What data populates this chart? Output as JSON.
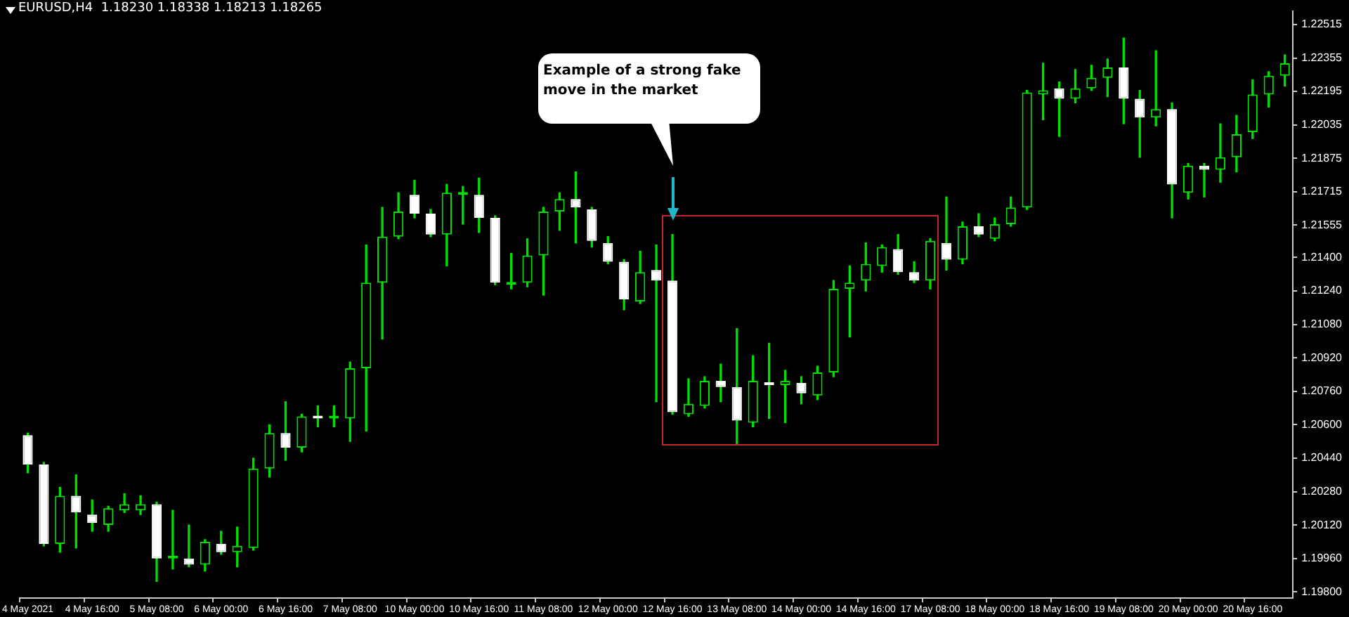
{
  "chart_data": {
    "type": "candlestick",
    "title": "EURUSD,H4  1.18230 1.18338 1.18213 1.18265",
    "color": "#00e000",
    "colors": [
      "#ffffff",
      "#ffffff",
      "#00e000",
      "#ffffff",
      "#ffffff",
      "#00e000",
      "#00e000",
      "#00e000",
      "#ffffff",
      "#00e000",
      "#ffffff",
      "#00e000",
      "#ffffff",
      "#00e000",
      "#00e000",
      "#00e000",
      "#ffffff",
      "#00e000",
      "#ffffff",
      "#00e000",
      "#00e000",
      "#00e000",
      "#00e000",
      "#00e000",
      "#ffffff",
      "#ffffff",
      "#00e000",
      "#00e000",
      "#ffffff",
      "#ffffff",
      "#00e000",
      "#00e000",
      "#00e000",
      "#00e000",
      "#ffffff",
      "#ffffff",
      "#ffffff",
      "#ffffff",
      "#00e000",
      "#ffffff",
      "#ffffff",
      "#00e000",
      "#00e000",
      "#ffffff",
      "#ffffff",
      "#00e000",
      "#ffffff",
      "#00e000",
      "#ffffff",
      "#00e000",
      "#00e000",
      "#00e000",
      "#00e000",
      "#00e000",
      "#ffffff",
      "#ffffff",
      "#00e000",
      "#ffffff",
      "#00e000",
      "#ffffff",
      "#00e000",
      "#00e000",
      "#00e000",
      "#00e000",
      "#ffffff",
      "#00e000",
      "#00e000",
      "#00e000",
      "#ffffff",
      "#ffffff",
      "#00e000",
      "#ffffff",
      "#00e000",
      "#ffffff",
      "#00e000",
      "#00e000",
      "#00e000",
      "#00e000",
      "#00e000"
    ],
    "categories": [
      "4 May 2021",
      null,
      null,
      null,
      "4 May 16:00",
      null,
      null,
      null,
      "5 May 08:00",
      null,
      null,
      null,
      "6 May 00:00",
      null,
      null,
      null,
      "6 May 16:00",
      null,
      null,
      null,
      "7 May 08:00",
      null,
      null,
      null,
      "10 May 00:00",
      null,
      null,
      null,
      "10 May 16:00",
      null,
      null,
      null,
      "11 May 08:00",
      null,
      null,
      null,
      "12 May 00:00",
      null,
      null,
      null,
      "12 May 16:00",
      null,
      null,
      null,
      "13 May 08:00",
      null,
      null,
      null,
      "14 May 00:00",
      null,
      null,
      null,
      "14 May 16:00",
      null,
      null,
      null,
      "17 May 08:00",
      null,
      null,
      null,
      "18 May 00:00",
      null,
      null,
      null,
      "18 May 16:00",
      null,
      null,
      null,
      "19 May 08:00",
      null,
      null,
      null,
      "20 May 00:00",
      null,
      null,
      null,
      "20 May 16:00",
      null,
      null
    ],
    "ohlc": [
      [
        1.2055,
        1.2056,
        1.2037,
        1.2041
      ],
      [
        1.2041,
        1.2042,
        1.2002,
        1.2003
      ],
      [
        1.2003,
        1.203,
        1.1999,
        1.2026
      ],
      [
        1.2026,
        1.2036,
        1.2001,
        1.2018
      ],
      [
        1.2017,
        1.2024,
        1.2009,
        1.2013
      ],
      [
        1.2012,
        1.2021,
        1.2009,
        1.202
      ],
      [
        1.2019,
        1.2027,
        1.2018,
        1.2022
      ],
      [
        1.2019,
        1.2026,
        1.2017,
        1.2022
      ],
      [
        1.2022,
        1.2023,
        1.1985,
        1.1996
      ],
      [
        1.1996,
        1.2019,
        1.1991,
        1.1997
      ],
      [
        1.1996,
        1.2012,
        1.1992,
        1.1993
      ],
      [
        1.1993,
        1.2005,
        1.199,
        1.2004
      ],
      [
        1.2003,
        1.2009,
        1.1998,
        1.1999
      ],
      [
        1.1999,
        1.2011,
        1.1992,
        1.2002
      ],
      [
        1.2001,
        1.2044,
        1.2,
        1.2039
      ],
      [
        1.2039,
        1.206,
        1.2035,
        1.2056
      ],
      [
        1.2056,
        1.2071,
        1.2043,
        1.2049
      ],
      [
        1.2049,
        1.2065,
        1.2047,
        1.2064
      ],
      [
        1.2064,
        1.2069,
        1.2059,
        1.2063
      ],
      [
        1.2063,
        1.2069,
        1.2059,
        1.2064
      ],
      [
        1.2063,
        1.209,
        1.2052,
        1.2087
      ],
      [
        1.2087,
        1.2146,
        1.2057,
        1.2128
      ],
      [
        1.2128,
        1.2164,
        1.2101,
        1.215
      ],
      [
        1.215,
        1.2171,
        1.2149,
        1.2162
      ],
      [
        1.217,
        1.2177,
        1.2159,
        1.2161
      ],
      [
        1.2161,
        1.2163,
        1.215,
        1.2151
      ],
      [
        1.2151,
        1.2175,
        1.2136,
        1.2171
      ],
      [
        1.217,
        1.2174,
        1.2156,
        1.2171
      ],
      [
        1.217,
        1.2178,
        1.2152,
        1.2159
      ],
      [
        1.2159,
        1.216,
        1.2127,
        1.2128
      ],
      [
        1.2127,
        1.2142,
        1.2125,
        1.2128
      ],
      [
        1.2128,
        1.2149,
        1.2126,
        1.2141
      ],
      [
        1.2141,
        1.2164,
        1.2122,
        1.2162
      ],
      [
        1.2162,
        1.2171,
        1.2153,
        1.2168
      ],
      [
        1.2168,
        1.2181,
        1.2147,
        1.2164
      ],
      [
        1.2163,
        1.2164,
        1.2145,
        1.2148
      ],
      [
        1.2147,
        1.215,
        1.2137,
        1.2138
      ],
      [
        1.2138,
        1.2139,
        1.2115,
        1.212
      ],
      [
        1.2119,
        1.2143,
        1.2118,
        1.2133
      ],
      [
        1.2134,
        1.2146,
        1.2071,
        1.2129
      ],
      [
        1.2129,
        1.2151,
        1.2065,
        1.2066
      ],
      [
        1.2065,
        1.2082,
        1.2064,
        1.207
      ],
      [
        1.2069,
        1.2083,
        1.2068,
        1.2081
      ],
      [
        1.2081,
        1.2089,
        1.2071,
        1.2078
      ],
      [
        1.2078,
        1.2106,
        1.2051,
        1.2062
      ],
      [
        1.2061,
        1.2093,
        1.2059,
        1.2081
      ],
      [
        1.208,
        1.2099,
        1.2063,
        1.2079
      ],
      [
        1.2079,
        1.2086,
        1.2061,
        1.2081
      ],
      [
        1.208,
        1.2083,
        1.207,
        1.2075
      ],
      [
        1.2074,
        1.2088,
        1.2072,
        1.2085
      ],
      [
        1.2085,
        1.2129,
        1.2083,
        1.2125
      ],
      [
        1.2125,
        1.2136,
        1.2102,
        1.2128
      ],
      [
        1.2129,
        1.2147,
        1.2124,
        1.2137
      ],
      [
        1.2136,
        1.2146,
        1.2133,
        1.2145
      ],
      [
        1.2144,
        1.2151,
        1.2132,
        1.2133
      ],
      [
        1.2133,
        1.2138,
        1.2128,
        1.2129
      ],
      [
        1.2129,
        1.2149,
        1.2125,
        1.2148
      ],
      [
        1.2147,
        1.2169,
        1.2134,
        1.2139
      ],
      [
        1.2139,
        1.2157,
        1.2137,
        1.2155
      ],
      [
        1.2155,
        1.2161,
        1.215,
        1.2151
      ],
      [
        1.2149,
        1.2159,
        1.2148,
        1.2156
      ],
      [
        1.2156,
        1.2169,
        1.2155,
        1.2164
      ],
      [
        1.2164,
        1.222,
        1.2163,
        1.2219
      ],
      [
        1.2218,
        1.2233,
        1.2206,
        1.222
      ],
      [
        1.2221,
        1.2224,
        1.2198,
        1.2216
      ],
      [
        1.2216,
        1.223,
        1.2214,
        1.2221
      ],
      [
        1.2221,
        1.2232,
        1.222,
        1.2226
      ],
      [
        1.2226,
        1.2235,
        1.2217,
        1.2231
      ],
      [
        1.2231,
        1.2245,
        1.2204,
        1.2216
      ],
      [
        1.2216,
        1.222,
        1.2188,
        1.2207
      ],
      [
        1.2207,
        1.2239,
        1.2203,
        1.2211
      ],
      [
        1.2211,
        1.2214,
        1.2159,
        1.2175
      ],
      [
        1.2171,
        1.2185,
        1.2168,
        1.2184
      ],
      [
        1.2184,
        1.2185,
        1.2169,
        1.2182
      ],
      [
        1.2182,
        1.2204,
        1.2176,
        1.2188
      ],
      [
        1.2188,
        1.2208,
        1.2181,
        1.2199
      ],
      [
        1.22,
        1.2225,
        1.2197,
        1.2218
      ],
      [
        1.2218,
        1.2229,
        1.2212,
        1.2227
      ],
      [
        1.2227,
        1.2237,
        1.2222,
        1.2233
      ]
    ],
    "ylim": [
      1.1977,
      1.2258
    ],
    "yticks": [
      {
        "value": 1.22515,
        "label": "1.22515"
      },
      {
        "value": 1.22355,
        "label": "1.22355"
      },
      {
        "value": 1.22195,
        "label": "1.22195"
      },
      {
        "value": 1.22035,
        "label": "1.22035"
      },
      {
        "value": 1.21875,
        "label": "1.21875"
      },
      {
        "value": 1.21715,
        "label": "1.21715"
      },
      {
        "value": 1.21555,
        "label": "1.21555"
      },
      {
        "value": 1.214,
        "label": "1.21400"
      },
      {
        "value": 1.2124,
        "label": "1.21240"
      },
      {
        "value": 1.2108,
        "label": "1.21080"
      },
      {
        "value": 1.2092,
        "label": "1.20920"
      },
      {
        "value": 1.2076,
        "label": "1.20760"
      },
      {
        "value": 1.206,
        "label": "1.20600"
      },
      {
        "value": 1.2044,
        "label": "1.20440"
      },
      {
        "value": 1.2028,
        "label": "1.20280"
      },
      {
        "value": 1.2012,
        "label": "1.20120"
      },
      {
        "value": 1.1996,
        "label": "1.19960"
      },
      {
        "value": 1.198,
        "label": "1.19800"
      }
    ],
    "annotations": [
      "Example of a strong fake move in the market"
    ]
  }
}
